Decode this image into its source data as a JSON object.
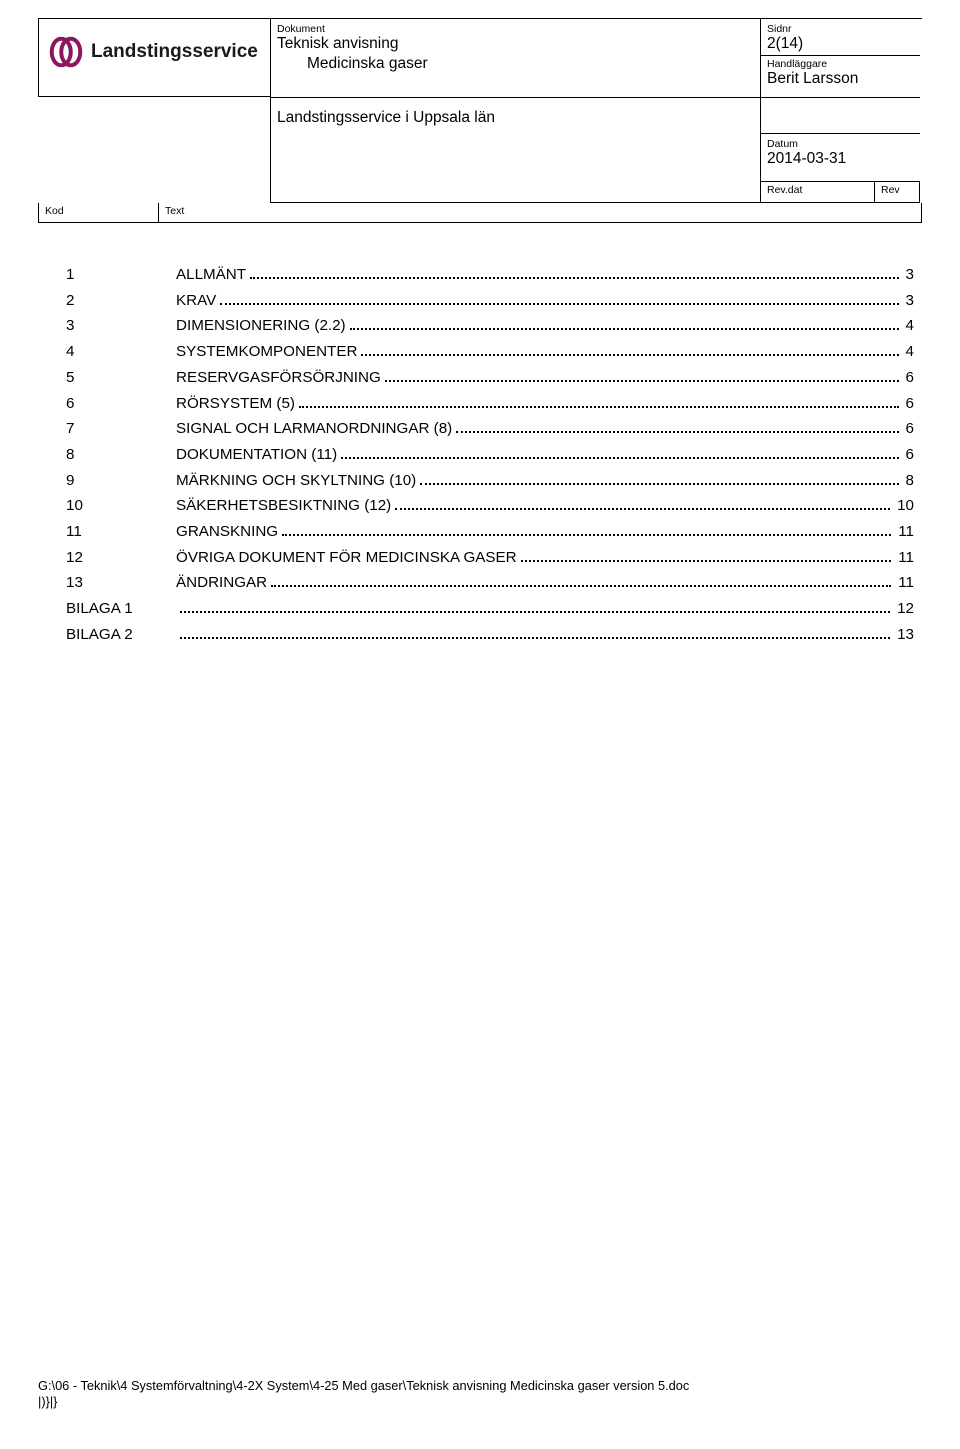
{
  "header": {
    "labels": {
      "dokument": "Dokument",
      "sidnr": "Sidnr",
      "handlaggare": "Handläggare",
      "datum": "Datum",
      "revdat": "Rev.dat",
      "rev": "Rev",
      "kod": "Kod",
      "text": "Text"
    },
    "dokument_title": "Teknisk anvisning",
    "dokument_sub": "Medicinska gaser",
    "sidnr": "2(14)",
    "handlaggare": "Berit Larsson",
    "mid_line": "Landstingsservice i Uppsala län",
    "datum": "2014-03-31",
    "revdat": "",
    "rev": ""
  },
  "logo": {
    "brand": "Landstingsservice",
    "icon_color": "#8a1760",
    "text_color": "#222222"
  },
  "toc": [
    {
      "num": "1",
      "title": "ALLMÄNT",
      "page": "3"
    },
    {
      "num": "2",
      "title": "KRAV",
      "page": "3"
    },
    {
      "num": "3",
      "title": "DIMENSIONERING (2.2)",
      "page": "4"
    },
    {
      "num": "4",
      "title": "SYSTEMKOMPONENTER",
      "page": "4"
    },
    {
      "num": "5",
      "title": "RESERVGASFÖRSÖRJNING",
      "page": "6"
    },
    {
      "num": "6",
      "title": "RÖRSYSTEM (5)",
      "page": "6"
    },
    {
      "num": "7",
      "title": "SIGNAL OCH LARMANORDNINGAR (8)",
      "page": "6"
    },
    {
      "num": "8",
      "title": "DOKUMENTATION (11)",
      "page": "6"
    },
    {
      "num": "9",
      "title": "MÄRKNING OCH SKYLTNING (10)",
      "page": "8"
    },
    {
      "num": "10",
      "title": "SÄKERHETSBESIKTNING (12)",
      "page": "10"
    },
    {
      "num": "11",
      "title": "GRANSKNING",
      "page": "11"
    },
    {
      "num": "12",
      "title": "ÖVRIGA DOKUMENT FÖR MEDICINSKA GASER",
      "page": "11"
    },
    {
      "num": "13",
      "title": "ÄNDRINGAR",
      "page": "11"
    },
    {
      "num": "BILAGA 1",
      "title": "",
      "page": "12"
    },
    {
      "num": "BILAGA 2",
      "title": "",
      "page": "13"
    }
  ],
  "footer": {
    "line1": "G:\\06 - Teknik\\4  Systemförvaltning\\4-2X  System\\4-25  Med gaser\\Teknisk anvisning Medicinska gaser version 5.doc",
    "line2": "|)}|}"
  },
  "colors": {
    "border": "#000000",
    "background": "#ffffff",
    "text": "#000000"
  },
  "fonts": {
    "body_family": "Arial",
    "small_label_pt": 8,
    "body_pt": 11.5,
    "logo_pt": 14
  }
}
